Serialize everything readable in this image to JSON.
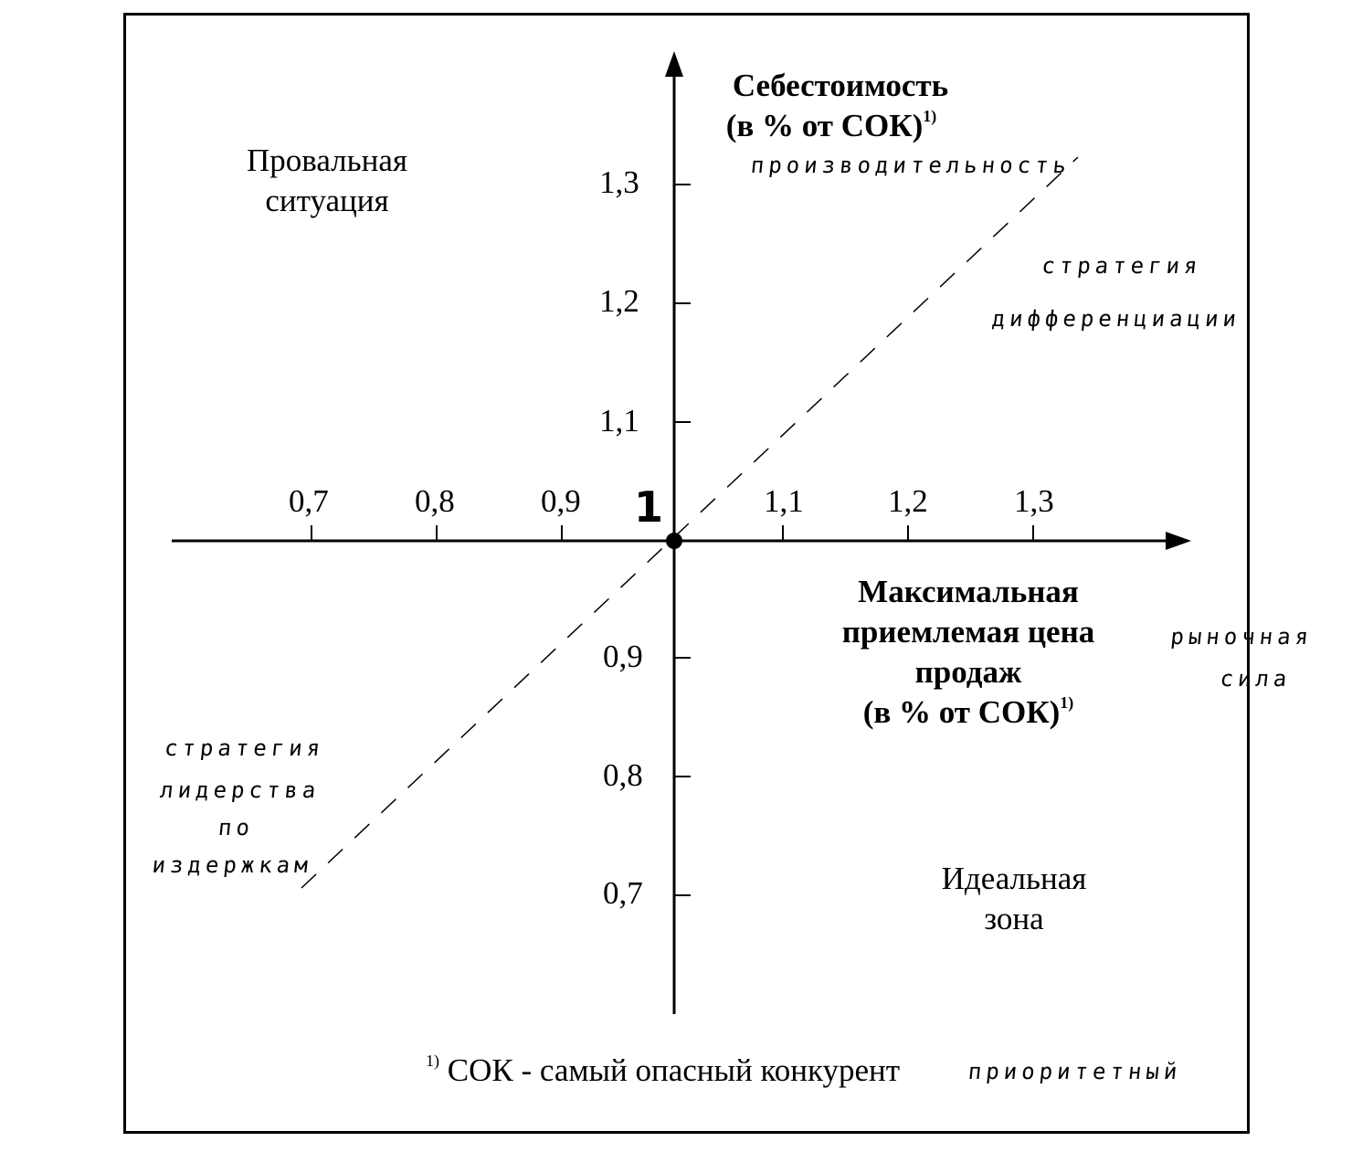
{
  "y_axis": {
    "title": "Себестоимость",
    "subtitle": "(в % от СОК)",
    "subtitle_sup": "1)",
    "ticks_upper": [
      "1,3",
      "1,2",
      "1,1"
    ],
    "ticks_lower": [
      "0,9",
      "0,8",
      "0,7"
    ]
  },
  "x_axis": {
    "title_lines": [
      "Максимальная",
      "приемлемая цена",
      "продаж"
    ],
    "subtitle": "(в % от СОК)",
    "subtitle_sup": "1)",
    "ticks_left": [
      "0,7",
      "0,8",
      "0,9"
    ],
    "ticks_right": [
      "1,1",
      "1,2",
      "1,3"
    ]
  },
  "origin_label": "1",
  "zones": {
    "failure": [
      "Провальная",
      "ситуация"
    ],
    "ideal": [
      "Идеальная",
      "зона"
    ]
  },
  "handwritten": {
    "top_axis": "производительность",
    "differentiation": [
      "стратегия",
      "дифференциации"
    ],
    "market_power": [
      "рыночная",
      "сила"
    ],
    "cost_leadership": [
      "стратегия",
      "лидерства",
      "по",
      "издержкам"
    ],
    "footnote_note": "приоритетный"
  },
  "footnote": {
    "marker": "1)",
    "text": "СОК - самый опасный конкурент"
  },
  "colors": {
    "ink": "#000000",
    "background": "#ffffff"
  }
}
